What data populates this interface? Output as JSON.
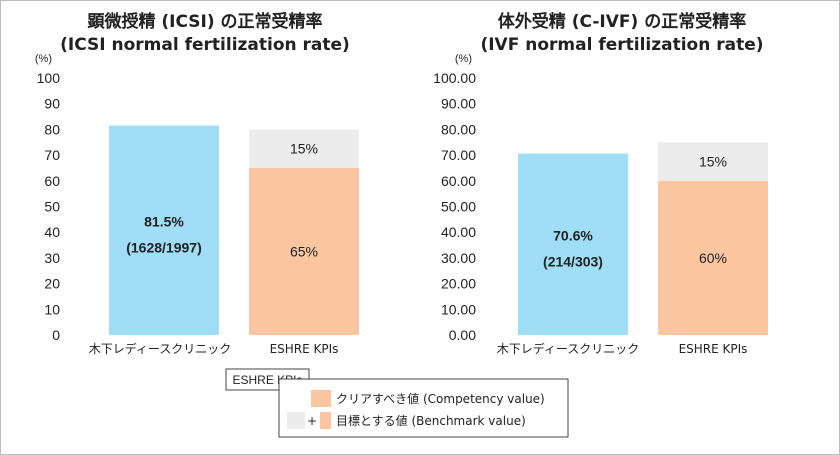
{
  "chart_data": [
    {
      "type": "bar",
      "title": "顕微授精 (ICSI) の正常受精率",
      "subtitle": "(ICSI normal fertilization rate)",
      "unit_label": "(%)",
      "ylim": [
        0,
        100
      ],
      "yticks": [
        "0",
        "10",
        "20",
        "30",
        "40",
        "50",
        "60",
        "70",
        "80",
        "90",
        "100"
      ],
      "categories": [
        "木下レディースクリニック",
        "ESHRE KPIs"
      ],
      "clinic": {
        "value": 81.5,
        "label_line1": "81.5%",
        "label_line2": "(1628/1997)"
      },
      "eshre": {
        "competency": 65,
        "competency_label": "65%",
        "benchmark_extra": 15,
        "benchmark_extra_label": "15%"
      },
      "grid": false
    },
    {
      "type": "bar",
      "title": "体外受精 (C-IVF) の正常受精率",
      "subtitle": "(IVF normal fertilization rate)",
      "unit_label": "(%)",
      "ylim": [
        0,
        100
      ],
      "yticks": [
        "0.00",
        "10.00",
        "20.00",
        "30.00",
        "40.00",
        "50.00",
        "60.00",
        "70.00",
        "80.00",
        "90.00",
        "100.00"
      ],
      "categories": [
        "木下レディースクリニック",
        "ESHRE KPIs"
      ],
      "clinic": {
        "value": 70.6,
        "label_line1": "70.6%",
        "label_line2": "(214/303)"
      },
      "eshre": {
        "competency": 60,
        "competency_label": "60%",
        "benchmark_extra": 15,
        "benchmark_extra_label": "15%"
      },
      "grid": false
    }
  ],
  "legend": {
    "title": "ESHRE KPIs",
    "plus_sign": "+",
    "items": [
      {
        "label": "クリアすべき値 (Competency value)",
        "color": "#fcc6a0"
      },
      {
        "label": "目標とする値 (Benchmark value)",
        "color": "#ececec"
      }
    ]
  },
  "colors": {
    "clinic": "#a0ddf7",
    "competency": "#fcc6a0",
    "benchmark": "#ececec"
  }
}
